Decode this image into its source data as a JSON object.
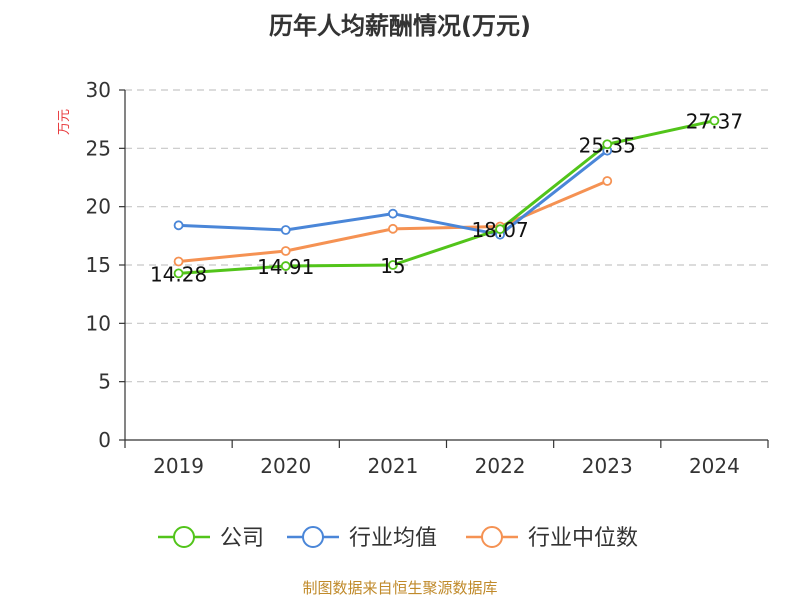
{
  "chart_data": {
    "type": "line",
    "title": "历年人均薪酬情况(万元)",
    "ylabel": "万元",
    "categories": [
      "2019",
      "2020",
      "2021",
      "2022",
      "2023",
      "2024"
    ],
    "ylim": [
      0,
      30
    ],
    "yticks": [
      0,
      5,
      10,
      15,
      20,
      25,
      30
    ],
    "grid": true,
    "legend_position": "bottom",
    "series": [
      {
        "name": "公司",
        "color": "#52c41a",
        "values": [
          14.28,
          14.91,
          15,
          18.07,
          25.35,
          27.37
        ],
        "labels": [
          "14.28",
          "14.91",
          "15",
          "18.07",
          "25.35",
          "27.37"
        ]
      },
      {
        "name": "行业均值",
        "color": "#4a86d8",
        "values": [
          18.4,
          18.0,
          19.4,
          17.6,
          24.8,
          null
        ]
      },
      {
        "name": "行业中位数",
        "color": "#f59253",
        "values": [
          15.3,
          16.2,
          18.1,
          18.3,
          22.2,
          null
        ]
      }
    ],
    "source": "制图数据来自恒生聚源数据库"
  }
}
